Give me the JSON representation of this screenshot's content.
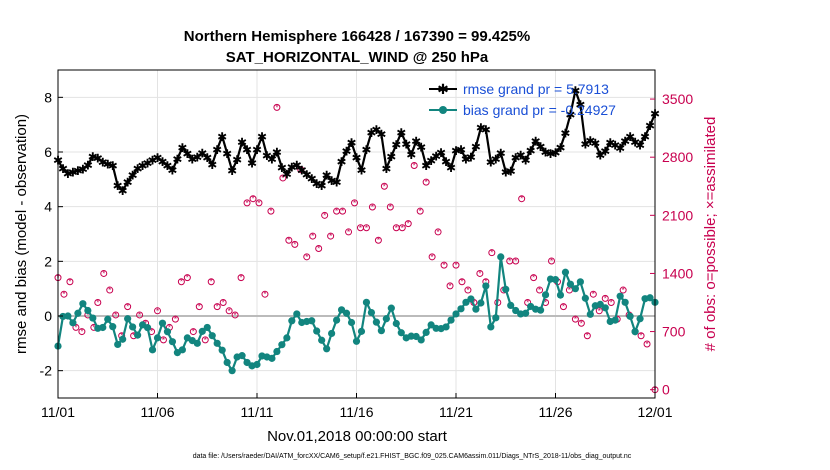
{
  "chart_data": {
    "type": "line",
    "title_line1": "Northern Hemisphere 166428 / 167390 = 99.425%",
    "title_line2": "SAT_HORIZONTAL_WIND @ 250 hPa",
    "xlabel": "Nov.01,2018 00:00:00 start",
    "ylabel": "rmse and bias (model - observation)",
    "ylabel_right": "# of obs: o=possible; ×=assimilated",
    "x_tick_labels": [
      "11/01",
      "11/06",
      "11/11",
      "11/16",
      "11/21",
      "11/26",
      "12/01"
    ],
    "x_tick_values": [
      0,
      5,
      10,
      15,
      20,
      25,
      30
    ],
    "xlim": [
      0,
      30
    ],
    "ylim": [
      -3,
      9
    ],
    "y_tick_values": [
      -2,
      0,
      2,
      4,
      6,
      8
    ],
    "y_tick_labels": [
      "-2",
      "0",
      "2",
      "4",
      "6",
      "8"
    ],
    "ylim_right": [
      -100,
      3850
    ],
    "y2_tick_values": [
      0,
      700,
      1400,
      2100,
      2800,
      3500
    ],
    "y2_tick_labels": [
      "0",
      "700",
      "1400",
      "2100",
      "2800",
      "3500"
    ],
    "grid": true,
    "legend_position": "top-right",
    "series": [
      {
        "name": "rmse grand pr = 5.7913",
        "color": "#000000",
        "marker": "star",
        "anchors": [
          [
            0,
            5.7
          ],
          [
            0.4,
            5.2
          ],
          [
            0.9,
            5.3
          ],
          [
            1.4,
            5.4
          ],
          [
            1.8,
            5.9
          ],
          [
            2.3,
            5.6
          ],
          [
            2.8,
            5.5
          ],
          [
            3.1,
            4.4
          ],
          [
            3.5,
            4.9
          ],
          [
            4.0,
            5.4
          ],
          [
            4.5,
            5.6
          ],
          [
            5.0,
            5.8
          ],
          [
            5.5,
            5.5
          ],
          [
            5.8,
            5.3
          ],
          [
            6.2,
            6.2
          ],
          [
            6.8,
            5.7
          ],
          [
            7.3,
            6.0
          ],
          [
            7.8,
            5.5
          ],
          [
            8.2,
            6.7
          ],
          [
            8.8,
            5.2
          ],
          [
            9.3,
            6.5
          ],
          [
            9.8,
            5.5
          ],
          [
            10.2,
            6.7
          ],
          [
            10.6,
            5.6
          ],
          [
            11.0,
            6.0
          ],
          [
            11.4,
            5.1
          ],
          [
            11.9,
            5.6
          ],
          [
            12.3,
            5.3
          ],
          [
            12.8,
            5.0
          ],
          [
            13.2,
            4.7
          ],
          [
            13.6,
            5.3
          ],
          [
            13.9,
            4.6
          ],
          [
            14.3,
            5.8
          ],
          [
            14.8,
            6.4
          ],
          [
            15.2,
            5.2
          ],
          [
            15.7,
            6.7
          ],
          [
            16.2,
            6.9
          ],
          [
            16.5,
            5.4
          ],
          [
            16.9,
            6.1
          ],
          [
            17.3,
            6.8
          ],
          [
            17.7,
            5.8
          ],
          [
            18.1,
            6.6
          ],
          [
            18.5,
            5.5
          ],
          [
            18.9,
            5.8
          ],
          [
            19.3,
            6.0
          ],
          [
            19.7,
            5.3
          ],
          [
            20.1,
            6.3
          ],
          [
            20.6,
            5.6
          ],
          [
            21.0,
            6.2
          ],
          [
            21.4,
            7.3
          ],
          [
            21.8,
            5.4
          ],
          [
            22.2,
            6.1
          ],
          [
            22.6,
            5.0
          ],
          [
            23.1,
            6.0
          ],
          [
            23.5,
            5.7
          ],
          [
            24.0,
            6.4
          ],
          [
            24.5,
            6.0
          ],
          [
            24.9,
            5.9
          ],
          [
            25.3,
            6.2
          ],
          [
            25.7,
            7.2
          ],
          [
            26.1,
            8.6
          ],
          [
            26.5,
            6.3
          ],
          [
            26.9,
            6.5
          ],
          [
            27.3,
            5.8
          ],
          [
            27.8,
            6.4
          ],
          [
            28.2,
            6.1
          ],
          [
            28.7,
            6.6
          ],
          [
            29.2,
            6.2
          ],
          [
            29.6,
            6.7
          ],
          [
            30,
            7.4
          ]
        ]
      },
      {
        "name": "bias grand pr = -0.24927",
        "color": "#12857f",
        "marker": "circle",
        "anchors": [
          [
            0,
            -1.1
          ],
          [
            0.3,
            0.2
          ],
          [
            0.8,
            -0.3
          ],
          [
            1.2,
            0.5
          ],
          [
            1.7,
            0.0
          ],
          [
            2.1,
            -0.6
          ],
          [
            2.6,
            0.0
          ],
          [
            3.1,
            -1.3
          ],
          [
            3.5,
            -0.1
          ],
          [
            4.0,
            -0.7
          ],
          [
            4.4,
            -0.1
          ],
          [
            4.8,
            -1.4
          ],
          [
            5.2,
            -0.2
          ],
          [
            5.6,
            -0.7
          ],
          [
            6.1,
            -1.5
          ],
          [
            6.5,
            -0.8
          ],
          [
            7.0,
            -1.0
          ],
          [
            7.4,
            -0.3
          ],
          [
            7.9,
            -0.9
          ],
          [
            8.3,
            -1.3
          ],
          [
            8.7,
            -2.1
          ],
          [
            9.1,
            -1.3
          ],
          [
            9.5,
            -1.7
          ],
          [
            9.9,
            -1.9
          ],
          [
            10.3,
            -1.4
          ],
          [
            10.7,
            -1.6
          ],
          [
            11.1,
            -1.2
          ],
          [
            11.5,
            -0.8
          ],
          [
            11.9,
            0.2
          ],
          [
            12.3,
            -0.3
          ],
          [
            12.7,
            -0.1
          ],
          [
            13.1,
            -0.7
          ],
          [
            13.5,
            -1.2
          ],
          [
            13.9,
            -0.3
          ],
          [
            14.3,
            0.3
          ],
          [
            14.7,
            -0.1
          ],
          [
            15.1,
            -1.2
          ],
          [
            15.5,
            0.5
          ],
          [
            15.9,
            -0.1
          ],
          [
            16.3,
            -0.6
          ],
          [
            16.7,
            0.4
          ],
          [
            17.1,
            -0.5
          ],
          [
            17.5,
            -0.8
          ],
          [
            17.9,
            -0.7
          ],
          [
            18.3,
            -0.9
          ],
          [
            18.7,
            -0.3
          ],
          [
            19.1,
            -0.5
          ],
          [
            19.5,
            -0.4
          ],
          [
            19.9,
            0.0
          ],
          [
            20.3,
            0.3
          ],
          [
            20.7,
            0.7
          ],
          [
            21.1,
            0.1
          ],
          [
            21.5,
            1.1
          ],
          [
            21.9,
            -1.3
          ],
          [
            22.2,
            2.4
          ],
          [
            22.6,
            0.5
          ],
          [
            23.0,
            0.2
          ],
          [
            23.4,
            0.0
          ],
          [
            23.8,
            0.4
          ],
          [
            24.2,
            0.1
          ],
          [
            24.6,
            1.0
          ],
          [
            24.9,
            1.7
          ],
          [
            25.2,
            0.6
          ],
          [
            25.5,
            1.6
          ],
          [
            25.9,
            0.9
          ],
          [
            26.3,
            1.3
          ],
          [
            26.7,
            0.0
          ],
          [
            27.1,
            0.5
          ],
          [
            27.5,
            0.3
          ],
          [
            27.9,
            -0.5
          ],
          [
            28.3,
            0.9
          ],
          [
            28.7,
            0.1
          ],
          [
            29.1,
            -0.8
          ],
          [
            29.4,
            0.6
          ],
          [
            29.7,
            0.7
          ],
          [
            30,
            0.5
          ]
        ]
      },
      {
        "name": "# of obs possible",
        "color": "#c8004f",
        "marker": "open-circle",
        "axis": "right",
        "points": [
          [
            0,
            1350
          ],
          [
            0.3,
            1150
          ],
          [
            0.6,
            1300
          ],
          [
            0.9,
            750
          ],
          [
            1.2,
            700
          ],
          [
            1.5,
            900
          ],
          [
            1.8,
            750
          ],
          [
            2.0,
            1050
          ],
          [
            2.3,
            1400
          ],
          [
            2.6,
            1200
          ],
          [
            2.9,
            900
          ],
          [
            3.2,
            650
          ],
          [
            3.5,
            1000
          ],
          [
            3.8,
            650
          ],
          [
            4.1,
            900
          ],
          [
            4.4,
            800
          ],
          [
            4.7,
            700
          ],
          [
            5.0,
            950
          ],
          [
            5.3,
            600
          ],
          [
            5.6,
            750
          ],
          [
            5.9,
            850
          ],
          [
            6.2,
            1300
          ],
          [
            6.5,
            1350
          ],
          [
            6.8,
            700
          ],
          [
            7.1,
            1000
          ],
          [
            7.4,
            600
          ],
          [
            7.7,
            1300
          ],
          [
            8.0,
            1000
          ],
          [
            8.3,
            1050
          ],
          [
            8.6,
            950
          ],
          [
            8.9,
            900
          ],
          [
            9.2,
            1350
          ],
          [
            9.5,
            2250
          ],
          [
            9.8,
            2300
          ],
          [
            10.1,
            2250
          ],
          [
            10.4,
            1150
          ],
          [
            10.7,
            2150
          ],
          [
            11.0,
            3400
          ],
          [
            11.3,
            2550
          ],
          [
            11.6,
            1800
          ],
          [
            11.9,
            1750
          ],
          [
            12.2,
            2650
          ],
          [
            12.5,
            1600
          ],
          [
            12.8,
            1850
          ],
          [
            13.1,
            1700
          ],
          [
            13.4,
            2100
          ],
          [
            13.7,
            1850
          ],
          [
            14.0,
            2150
          ],
          [
            14.3,
            2150
          ],
          [
            14.6,
            1900
          ],
          [
            14.9,
            2250
          ],
          [
            15.2,
            1950
          ],
          [
            15.5,
            1950
          ],
          [
            15.8,
            2200
          ],
          [
            16.1,
            1800
          ],
          [
            16.4,
            2450
          ],
          [
            16.7,
            2200
          ],
          [
            17.0,
            1950
          ],
          [
            17.3,
            1950
          ],
          [
            17.6,
            2000
          ],
          [
            17.9,
            2700
          ],
          [
            18.2,
            2150
          ],
          [
            18.5,
            2500
          ],
          [
            18.8,
            1600
          ],
          [
            19.1,
            1900
          ],
          [
            19.4,
            1500
          ],
          [
            19.7,
            1250
          ],
          [
            20.0,
            1500
          ],
          [
            20.3,
            1300
          ],
          [
            20.6,
            1200
          ],
          [
            20.9,
            1050
          ],
          [
            21.2,
            1400
          ],
          [
            21.5,
            1300
          ],
          [
            21.8,
            1650
          ],
          [
            22.1,
            1050
          ],
          [
            22.4,
            1200
          ],
          [
            22.7,
            1550
          ],
          [
            23.0,
            1550
          ],
          [
            23.3,
            2300
          ],
          [
            23.6,
            1050
          ],
          [
            23.9,
            1350
          ],
          [
            24.2,
            1200
          ],
          [
            24.5,
            1050
          ],
          [
            24.8,
            1550
          ],
          [
            25.1,
            1300
          ],
          [
            25.4,
            1000
          ],
          [
            25.7,
            1200
          ],
          [
            26.0,
            850
          ],
          [
            26.3,
            800
          ],
          [
            26.6,
            650
          ],
          [
            26.9,
            1150
          ],
          [
            27.2,
            950
          ],
          [
            27.5,
            1100
          ],
          [
            27.8,
            1050
          ],
          [
            28.1,
            850
          ],
          [
            28.4,
            1200
          ],
          [
            28.7,
            900
          ],
          [
            29.0,
            700
          ],
          [
            29.3,
            650
          ],
          [
            29.6,
            550
          ],
          [
            30,
            0
          ]
        ]
      }
    ],
    "legend_entries": [
      "rmse grand pr = 5.7913",
      "bias grand pr = -0.24927"
    ],
    "footer": "data file: /Users/raeder/DAI/ATM_forcXX/CAM6_setup/f.e21.FHIST_BGC.f09_025.CAM6assim.011/Diags_NTrS_2018-11/obs_diag_output.nc"
  }
}
